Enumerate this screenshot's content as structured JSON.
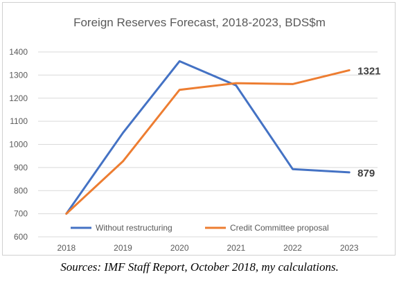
{
  "chart_data": {
    "type": "line",
    "title": "Foreign Reserves Forecast, 2018-2023, BDS$m",
    "categories": [
      "2018",
      "2019",
      "2020",
      "2021",
      "2022",
      "2023"
    ],
    "ylim": [
      600,
      1400
    ],
    "yticks": [
      600,
      700,
      800,
      900,
      1000,
      1100,
      1200,
      1300,
      1400
    ],
    "grid": true,
    "legend_position": "bottom",
    "series": [
      {
        "name": "Without restructuring",
        "color": "#4472C4",
        "values": [
          700,
          1050,
          1360,
          1255,
          893,
          879
        ],
        "end_label": "879"
      },
      {
        "name": "Credit Committee proposal",
        "color": "#ED7D31",
        "values": [
          700,
          927,
          1236,
          1265,
          1261,
          1321
        ],
        "end_label": "1321"
      }
    ]
  },
  "source_note": "Sources: IMF Staff Report, October 2018, my calculations."
}
